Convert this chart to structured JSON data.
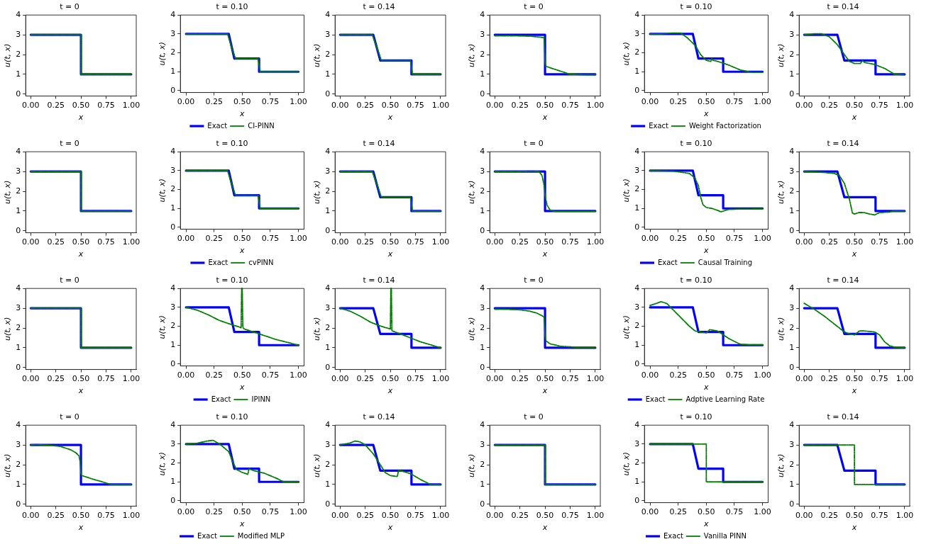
{
  "chart_data": [
    {
      "type": "line",
      "title": "t = 0",
      "xlabel": "x",
      "ylabel": "u(t, x)",
      "xlim": [
        -0.05,
        1.05
      ],
      "xticks": [
        {
          "value": 0,
          "label": "0.00"
        },
        {
          "value": 0.25,
          "label": "0.25"
        },
        {
          "value": 0.5,
          "label": "0.50"
        },
        {
          "value": 0.75,
          "label": "0.75"
        },
        {
          "value": 1,
          "label": "1.00"
        }
      ],
      "ylim": [
        -0.1,
        4
      ],
      "yticks": [
        0,
        1,
        2,
        3,
        4
      ],
      "series": [
        {
          "color": "#0000ff",
          "line_style": "solid",
          "x": [
            0,
            0.5,
            0.5,
            1
          ],
          "values": [
            3,
            3,
            1,
            1
          ]
        },
        {
          "color": "#008000",
          "line_style": "dashed",
          "x": [
            0,
            0.5,
            0.5,
            1
          ],
          "values": [
            3,
            3,
            1,
            1
          ]
        }
      ]
    },
    {
      "type": "line",
      "title": "t = 0.10",
      "xlabel": "x",
      "ylabel": "u(t, x)",
      "xlim": [
        -0.05,
        1.05
      ],
      "xticks": [
        {
          "value": 0,
          "label": "0.00"
        },
        {
          "value": 0.25,
          "label": "0.25"
        },
        {
          "value": 0.5,
          "label": "0.50"
        },
        {
          "value": 0.75,
          "label": "0.75"
        },
        {
          "value": 1,
          "label": "1.00"
        }
      ],
      "ylim": [
        -0.1,
        4
      ],
      "yticks": [
        0,
        1,
        2,
        3,
        4
      ],
      "legend": "bottom",
      "series": [
        {
          "name": "Exact",
          "color": "#0000ff",
          "line_style": "solid",
          "x": [
            0,
            0.38,
            0.43,
            0.65,
            0.65,
            1
          ],
          "values": [
            3,
            3,
            1.7,
            1.7,
            1,
            1
          ]
        },
        {
          "name": "CI-PINN",
          "color": "#008000",
          "line_style": "dashed",
          "x": [
            0,
            0.37,
            0.41,
            0.44,
            0.64,
            0.66,
            1
          ],
          "values": [
            3,
            3,
            2.2,
            1.7,
            1.7,
            1,
            1
          ]
        }
      ]
    },
    {
      "type": "line",
      "title": "t = 0.14",
      "xlabel": "x",
      "ylabel": "u(t, x)",
      "xlim": [
        -0.05,
        1.05
      ],
      "xticks": [
        {
          "value": 0,
          "label": "0.00"
        },
        {
          "value": 0.25,
          "label": "0.25"
        },
        {
          "value": 0.5,
          "label": "0.50"
        },
        {
          "value": 0.75,
          "label": "0.75"
        },
        {
          "value": 1,
          "label": "1.00"
        }
      ],
      "ylim": [
        -0.1,
        4
      ],
      "yticks": [
        0,
        1,
        2,
        3,
        4
      ],
      "series": [
        {
          "color": "#0000ff",
          "line_style": "solid",
          "x": [
            0,
            0.33,
            0.4,
            0.71,
            0.71,
            1
          ],
          "values": [
            3,
            3,
            1.7,
            1.7,
            1,
            1
          ]
        },
        {
          "color": "#008000",
          "line_style": "dashed",
          "x": [
            0,
            0.32,
            0.37,
            0.41,
            0.7,
            0.72,
            1
          ],
          "values": [
            3,
            3,
            2.3,
            1.7,
            1.7,
            1,
            1
          ]
        }
      ]
    },
    {
      "type": "line",
      "title": "t = 0",
      "xlabel": "x",
      "ylabel": "u(t, x)",
      "xlim": [
        -0.05,
        1.05
      ],
      "xticks": [
        {
          "value": 0,
          "label": "0.00"
        },
        {
          "value": 0.25,
          "label": "0.25"
        },
        {
          "value": 0.5,
          "label": "0.50"
        },
        {
          "value": 0.75,
          "label": "0.75"
        },
        {
          "value": 1,
          "label": "1.00"
        }
      ],
      "ylim": [
        -0.1,
        4
      ],
      "yticks": [
        0,
        1,
        2,
        3,
        4
      ],
      "series": [
        {
          "color": "#0000ff",
          "line_style": "solid",
          "x": [
            0,
            0.5,
            0.5,
            1
          ],
          "values": [
            3,
            3,
            1,
            1
          ]
        },
        {
          "color": "#008000",
          "line_style": "dashed",
          "x": [
            0,
            0.2,
            0.35,
            0.45,
            0.49,
            0.5,
            0.51,
            0.6,
            0.75,
            0.9,
            1
          ],
          "values": [
            2.95,
            2.95,
            2.93,
            2.88,
            2.85,
            1.6,
            1.4,
            1.25,
            1.0,
            0.97,
            0.97
          ]
        }
      ]
    },
    {
      "type": "line",
      "title": "t = 0.10",
      "xlabel": "x",
      "ylabel": "u(t, x)",
      "xlim": [
        -0.05,
        1.05
      ],
      "xticks": [
        {
          "value": 0,
          "label": "0.00"
        },
        {
          "value": 0.25,
          "label": "0.25"
        },
        {
          "value": 0.5,
          "label": "0.50"
        },
        {
          "value": 0.75,
          "label": "0.75"
        },
        {
          "value": 1,
          "label": "1.00"
        }
      ],
      "ylim": [
        -0.1,
        4
      ],
      "yticks": [
        0,
        1,
        2,
        3,
        4
      ],
      "legend": "bottom",
      "series": [
        {
          "name": "Exact",
          "color": "#0000ff",
          "line_style": "solid",
          "x": [
            0,
            0.38,
            0.43,
            0.65,
            0.65,
            1
          ],
          "values": [
            3,
            3,
            1.7,
            1.7,
            1,
            1
          ]
        },
        {
          "name": "Weight Factorization",
          "color": "#008000",
          "line_style": "dashed",
          "x": [
            0,
            0.1,
            0.2,
            0.27,
            0.33,
            0.4,
            0.45,
            0.5,
            0.54,
            0.55,
            0.56,
            0.6,
            0.7,
            0.8,
            0.9,
            1
          ],
          "values": [
            3,
            3.0,
            3.05,
            3.05,
            2.8,
            2.4,
            1.9,
            1.6,
            1.55,
            1.7,
            1.6,
            1.55,
            1.35,
            1.1,
            0.97,
            0.97
          ]
        }
      ]
    },
    {
      "type": "line",
      "title": "t = 0.14",
      "xlabel": "x",
      "ylabel": "u(t, x)",
      "xlim": [
        -0.05,
        1.05
      ],
      "xticks": [
        {
          "value": 0,
          "label": "0.00"
        },
        {
          "value": 0.25,
          "label": "0.25"
        },
        {
          "value": 0.5,
          "label": "0.50"
        },
        {
          "value": 0.75,
          "label": "0.75"
        },
        {
          "value": 1,
          "label": "1.00"
        }
      ],
      "ylim": [
        -0.1,
        4
      ],
      "yticks": [
        0,
        1,
        2,
        3,
        4
      ],
      "series": [
        {
          "color": "#0000ff",
          "line_style": "solid",
          "x": [
            0,
            0.33,
            0.4,
            0.71,
            0.71,
            1
          ],
          "values": [
            3,
            3,
            1.7,
            1.7,
            1,
            1
          ]
        },
        {
          "color": "#008000",
          "line_style": "dashed",
          "x": [
            0,
            0.1,
            0.17,
            0.25,
            0.33,
            0.4,
            0.45,
            0.5,
            0.56,
            0.58,
            0.6,
            0.7,
            0.8,
            0.9,
            1
          ],
          "values": [
            3,
            3.05,
            3.05,
            2.9,
            2.5,
            2.0,
            1.65,
            1.55,
            1.55,
            1.7,
            1.6,
            1.5,
            1.3,
            1.0,
            0.97
          ]
        }
      ]
    },
    {
      "type": "line",
      "title": "t = 0",
      "xlabel": "x",
      "ylabel": "u(t, x)",
      "xlim": [
        -0.05,
        1.05
      ],
      "xticks": [
        {
          "value": 0,
          "label": "0.00"
        },
        {
          "value": 0.25,
          "label": "0.25"
        },
        {
          "value": 0.5,
          "label": "0.50"
        },
        {
          "value": 0.75,
          "label": "0.75"
        },
        {
          "value": 1,
          "label": "1.00"
        }
      ],
      "ylim": [
        -0.1,
        4
      ],
      "yticks": [
        0,
        1,
        2,
        3,
        4
      ],
      "series": [
        {
          "color": "#0000ff",
          "line_style": "solid",
          "x": [
            0,
            0.5,
            0.5,
            1
          ],
          "values": [
            3,
            3,
            1,
            1
          ]
        },
        {
          "color": "#008000",
          "line_style": "dashed",
          "x": [
            0,
            0.5,
            0.5,
            1
          ],
          "values": [
            3,
            3,
            1,
            1
          ]
        }
      ]
    },
    {
      "type": "line",
      "title": "t = 0.10",
      "xlabel": "x",
      "ylabel": "u(t, x)",
      "xlim": [
        -0.05,
        1.05
      ],
      "xticks": [
        {
          "value": 0,
          "label": "0.00"
        },
        {
          "value": 0.25,
          "label": "0.25"
        },
        {
          "value": 0.5,
          "label": "0.50"
        },
        {
          "value": 0.75,
          "label": "0.75"
        },
        {
          "value": 1,
          "label": "1.00"
        }
      ],
      "ylim": [
        -0.1,
        4
      ],
      "yticks": [
        0,
        1,
        2,
        3,
        4
      ],
      "legend": "bottom",
      "series": [
        {
          "name": "Exact",
          "color": "#0000ff",
          "line_style": "solid",
          "x": [
            0,
            0.38,
            0.43,
            0.65,
            0.65,
            1
          ],
          "values": [
            3,
            3,
            1.7,
            1.7,
            1,
            1
          ]
        },
        {
          "name": "cvPINN",
          "color": "#008000",
          "line_style": "dashed",
          "x": [
            0,
            0.37,
            0.41,
            0.44,
            0.64,
            0.66,
            1
          ],
          "values": [
            3,
            3,
            2.2,
            1.7,
            1.7,
            1,
            1
          ]
        }
      ]
    },
    {
      "type": "line",
      "title": "t = 0.14",
      "xlabel": "x",
      "ylabel": "u(t, x)",
      "xlim": [
        -0.05,
        1.05
      ],
      "xticks": [
        {
          "value": 0,
          "label": "0.00"
        },
        {
          "value": 0.25,
          "label": "0.25"
        },
        {
          "value": 0.5,
          "label": "0.50"
        },
        {
          "value": 0.75,
          "label": "0.75"
        },
        {
          "value": 1,
          "label": "1.00"
        }
      ],
      "ylim": [
        -0.1,
        4
      ],
      "yticks": [
        0,
        1,
        2,
        3,
        4
      ],
      "series": [
        {
          "color": "#0000ff",
          "line_style": "solid",
          "x": [
            0,
            0.33,
            0.4,
            0.71,
            0.71,
            1
          ],
          "values": [
            3,
            3,
            1.7,
            1.7,
            1,
            1
          ]
        },
        {
          "color": "#008000",
          "line_style": "dashed",
          "x": [
            0,
            0.32,
            0.37,
            0.41,
            0.7,
            0.72,
            1
          ],
          "values": [
            3,
            3,
            2.3,
            1.7,
            1.7,
            1,
            1
          ]
        }
      ]
    },
    {
      "type": "line",
      "title": "t = 0",
      "xlabel": "x",
      "ylabel": "u(t, x)",
      "xlim": [
        -0.05,
        1.05
      ],
      "xticks": [
        {
          "value": 0,
          "label": "0.00"
        },
        {
          "value": 0.25,
          "label": "0.25"
        },
        {
          "value": 0.5,
          "label": "0.50"
        },
        {
          "value": 0.75,
          "label": "0.75"
        },
        {
          "value": 1,
          "label": "1.00"
        }
      ],
      "ylim": [
        -0.1,
        4
      ],
      "yticks": [
        0,
        1,
        2,
        3,
        4
      ],
      "series": [
        {
          "color": "#0000ff",
          "line_style": "solid",
          "x": [
            0,
            0.5,
            0.5,
            1
          ],
          "values": [
            3,
            3,
            1,
            1
          ]
        },
        {
          "color": "#008000",
          "line_style": "dashed",
          "x": [
            0,
            0.2,
            0.38,
            0.44,
            0.47,
            0.49,
            0.5,
            0.52,
            0.55,
            0.6,
            0.8,
            1
          ],
          "values": [
            3.0,
            3.0,
            3.02,
            3.0,
            2.8,
            2.3,
            1.8,
            1.3,
            1.05,
            0.98,
            0.98,
            0.98
          ]
        }
      ]
    },
    {
      "type": "line",
      "title": "t = 0.10",
      "xlabel": "x",
      "ylabel": "u(t, x)",
      "xlim": [
        -0.05,
        1.05
      ],
      "xticks": [
        {
          "value": 0,
          "label": "0.00"
        },
        {
          "value": 0.25,
          "label": "0.25"
        },
        {
          "value": 0.5,
          "label": "0.50"
        },
        {
          "value": 0.75,
          "label": "0.75"
        },
        {
          "value": 1,
          "label": "1.00"
        }
      ],
      "ylim": [
        -0.1,
        4
      ],
      "yticks": [
        0,
        1,
        2,
        3,
        4
      ],
      "legend": "bottom",
      "series": [
        {
          "name": "Exact",
          "color": "#0000ff",
          "line_style": "solid",
          "x": [
            0,
            0.38,
            0.43,
            0.65,
            0.65,
            1
          ],
          "values": [
            3,
            3,
            1.7,
            1.7,
            1,
            1
          ]
        },
        {
          "name": "Causal Training",
          "color": "#008000",
          "line_style": "dashed",
          "x": [
            0,
            0.2,
            0.3,
            0.35,
            0.4,
            0.43,
            0.45,
            0.47,
            0.5,
            0.55,
            0.6,
            0.63,
            0.7,
            0.8,
            0.9,
            1
          ],
          "values": [
            3,
            2.97,
            2.9,
            2.85,
            2.6,
            2.2,
            1.6,
            1.2,
            1.05,
            1.0,
            0.9,
            0.82,
            0.95,
            0.97,
            0.97,
            0.98
          ]
        }
      ]
    },
    {
      "type": "line",
      "title": "t = 0.14",
      "xlabel": "x",
      "ylabel": "u(t, x)",
      "xlim": [
        -0.05,
        1.05
      ],
      "xticks": [
        {
          "value": 0,
          "label": "0.00"
        },
        {
          "value": 0.25,
          "label": "0.25"
        },
        {
          "value": 0.5,
          "label": "0.50"
        },
        {
          "value": 0.75,
          "label": "0.75"
        },
        {
          "value": 1,
          "label": "1.00"
        }
      ],
      "ylim": [
        -0.1,
        4
      ],
      "yticks": [
        0,
        1,
        2,
        3,
        4
      ],
      "series": [
        {
          "color": "#0000ff",
          "line_style": "solid",
          "x": [
            0,
            0.33,
            0.4,
            0.71,
            0.71,
            1
          ],
          "values": [
            3,
            3,
            1.7,
            1.7,
            1,
            1
          ]
        },
        {
          "color": "#008000",
          "line_style": "dashed",
          "x": [
            0,
            0.2,
            0.3,
            0.35,
            0.4,
            0.45,
            0.48,
            0.5,
            0.55,
            0.6,
            0.65,
            0.7,
            0.75,
            0.85,
            0.88,
            1
          ],
          "values": [
            3,
            2.95,
            2.9,
            2.8,
            2.4,
            1.6,
            0.9,
            0.85,
            0.93,
            0.92,
            0.85,
            0.8,
            0.92,
            0.95,
            1.0,
            1.0
          ]
        }
      ]
    },
    {
      "type": "line",
      "title": "t = 0",
      "xlabel": "x",
      "ylabel": "u(t, x)",
      "xlim": [
        -0.05,
        1.05
      ],
      "xticks": [
        {
          "value": 0,
          "label": "0.00"
        },
        {
          "value": 0.25,
          "label": "0.25"
        },
        {
          "value": 0.5,
          "label": "0.50"
        },
        {
          "value": 0.75,
          "label": "0.75"
        },
        {
          "value": 1,
          "label": "1.00"
        }
      ],
      "ylim": [
        -0.1,
        4
      ],
      "yticks": [
        0,
        1,
        2,
        3,
        4
      ],
      "series": [
        {
          "color": "#0000ff",
          "line_style": "solid",
          "x": [
            0,
            0.5,
            0.5,
            1
          ],
          "values": [
            3,
            3,
            1,
            1
          ]
        },
        {
          "color": "#008000",
          "line_style": "dashed",
          "x": [
            0,
            0.5,
            0.5,
            1
          ],
          "values": [
            3,
            3,
            1,
            1
          ]
        }
      ]
    },
    {
      "type": "line",
      "title": "t = 0.10",
      "xlabel": "x",
      "ylabel": "u(t, x)",
      "xlim": [
        -0.05,
        1.05
      ],
      "xticks": [
        {
          "value": 0,
          "label": "0.00"
        },
        {
          "value": 0.25,
          "label": "0.25"
        },
        {
          "value": 0.5,
          "label": "0.50"
        },
        {
          "value": 0.75,
          "label": "0.75"
        },
        {
          "value": 1,
          "label": "1.00"
        }
      ],
      "ylim": [
        -0.1,
        4
      ],
      "yticks": [
        0,
        1,
        2,
        3,
        4
      ],
      "legend": "bottom",
      "series": [
        {
          "name": "Exact",
          "color": "#0000ff",
          "line_style": "solid",
          "x": [
            0,
            0.38,
            0.43,
            0.65,
            0.65,
            1
          ],
          "values": [
            3,
            3,
            1.7,
            1.7,
            1,
            1
          ]
        },
        {
          "name": "IPINN",
          "color": "#008000",
          "line_style": "dashed",
          "x": [
            0,
            0.1,
            0.2,
            0.3,
            0.4,
            0.48,
            0.49,
            0.495,
            0.5,
            0.505,
            0.51,
            0.52,
            0.6,
            0.7,
            0.8,
            0.9,
            1
          ],
          "values": [
            3,
            2.85,
            2.6,
            2.3,
            2.1,
            1.95,
            1.9,
            4,
            4,
            2.0,
            1.9,
            1.85,
            1.7,
            1.5,
            1.3,
            1.15,
            1
          ]
        }
      ]
    },
    {
      "type": "line",
      "title": "t = 0.14",
      "xlabel": "x",
      "ylabel": "u(t, x)",
      "xlim": [
        -0.05,
        1.05
      ],
      "xticks": [
        {
          "value": 0,
          "label": "0.00"
        },
        {
          "value": 0.25,
          "label": "0.25"
        },
        {
          "value": 0.5,
          "label": "0.50"
        },
        {
          "value": 0.75,
          "label": "0.75"
        },
        {
          "value": 1,
          "label": "1.00"
        }
      ],
      "ylim": [
        -0.1,
        4
      ],
      "yticks": [
        0,
        1,
        2,
        3,
        4
      ],
      "series": [
        {
          "color": "#0000ff",
          "line_style": "solid",
          "x": [
            0,
            0.33,
            0.4,
            0.71,
            0.71,
            1
          ],
          "values": [
            3,
            3,
            1.7,
            1.7,
            1,
            1
          ]
        },
        {
          "color": "#008000",
          "line_style": "dashed",
          "x": [
            0,
            0.1,
            0.2,
            0.3,
            0.4,
            0.5,
            0.505,
            0.51,
            0.515,
            0.52,
            0.6,
            0.7,
            0.8,
            0.9,
            1
          ],
          "values": [
            3,
            2.85,
            2.6,
            2.3,
            2.1,
            1.95,
            4,
            4,
            1.9,
            1.85,
            1.7,
            1.5,
            1.3,
            1.15,
            1
          ]
        }
      ]
    },
    {
      "type": "line",
      "title": "t = 0",
      "xlabel": "x",
      "ylabel": "u(t, x)",
      "xlim": [
        -0.05,
        1.05
      ],
      "xticks": [
        {
          "value": 0,
          "label": "0.00"
        },
        {
          "value": 0.25,
          "label": "0.25"
        },
        {
          "value": 0.5,
          "label": "0.50"
        },
        {
          "value": 0.75,
          "label": "0.75"
        },
        {
          "value": 1,
          "label": "1.00"
        }
      ],
      "ylim": [
        -0.1,
        4
      ],
      "yticks": [
        0,
        1,
        2,
        3,
        4
      ],
      "series": [
        {
          "color": "#0000ff",
          "line_style": "solid",
          "x": [
            0,
            0.5,
            0.5,
            1
          ],
          "values": [
            3,
            3,
            1,
            1
          ]
        },
        {
          "color": "#008000",
          "line_style": "dashed",
          "x": [
            0,
            0.1,
            0.25,
            0.35,
            0.42,
            0.47,
            0.49,
            0.5,
            0.51,
            0.55,
            0.65,
            0.8,
            1
          ],
          "values": [
            2.95,
            2.95,
            2.92,
            2.85,
            2.75,
            2.62,
            2.55,
            1.6,
            1.35,
            1.2,
            1.08,
            1.03,
            1.03
          ]
        }
      ]
    },
    {
      "type": "line",
      "title": "t = 0.10",
      "xlabel": "x",
      "ylabel": "u(t, x)",
      "xlim": [
        -0.05,
        1.05
      ],
      "xticks": [
        {
          "value": 0,
          "label": "0.00"
        },
        {
          "value": 0.25,
          "label": "0.25"
        },
        {
          "value": 0.5,
          "label": "0.50"
        },
        {
          "value": 0.75,
          "label": "0.75"
        },
        {
          "value": 1,
          "label": "1.00"
        }
      ],
      "ylim": [
        -0.1,
        4
      ],
      "yticks": [
        0,
        1,
        2,
        3,
        4
      ],
      "legend": "bottom",
      "series": [
        {
          "name": "Exact",
          "color": "#0000ff",
          "line_style": "solid",
          "x": [
            0,
            0.38,
            0.43,
            0.65,
            0.65,
            1
          ],
          "values": [
            3,
            3,
            1.7,
            1.7,
            1,
            1
          ]
        },
        {
          "name": "Adptive Learning Rate",
          "color": "#008000",
          "line_style": "dashed",
          "x": [
            0,
            0.05,
            0.1,
            0.15,
            0.2,
            0.3,
            0.35,
            0.4,
            0.45,
            0.5,
            0.53,
            0.6,
            0.65,
            0.7,
            0.8,
            0.9,
            1
          ],
          "values": [
            3.1,
            3.2,
            3.3,
            3.2,
            2.9,
            2.3,
            2.0,
            1.75,
            1.7,
            1.65,
            1.82,
            1.75,
            1.55,
            1.35,
            1.05,
            1.02,
            1.02
          ]
        }
      ]
    },
    {
      "type": "line",
      "title": "t = 0.14",
      "xlabel": "x",
      "ylabel": "u(t, x)",
      "xlim": [
        -0.05,
        1.05
      ],
      "xticks": [
        {
          "value": 0,
          "label": "0.00"
        },
        {
          "value": 0.25,
          "label": "0.25"
        },
        {
          "value": 0.5,
          "label": "0.50"
        },
        {
          "value": 0.75,
          "label": "0.75"
        },
        {
          "value": 1,
          "label": "1.00"
        }
      ],
      "ylim": [
        -0.1,
        4
      ],
      "yticks": [
        0,
        1,
        2,
        3,
        4
      ],
      "series": [
        {
          "color": "#0000ff",
          "line_style": "solid",
          "x": [
            0,
            0.33,
            0.4,
            0.71,
            0.71,
            1
          ],
          "values": [
            3,
            3,
            1.7,
            1.7,
            1,
            1
          ]
        },
        {
          "color": "#008000",
          "line_style": "dashed",
          "x": [
            0,
            0.1,
            0.2,
            0.3,
            0.4,
            0.45,
            0.5,
            0.55,
            0.6,
            0.7,
            0.75,
            0.8,
            0.85,
            0.9,
            1
          ],
          "values": [
            3.25,
            2.95,
            2.6,
            2.2,
            1.8,
            1.7,
            1.65,
            1.85,
            1.85,
            1.8,
            1.65,
            1.3,
            1.1,
            1.03,
            1.0
          ]
        }
      ]
    },
    {
      "type": "line",
      "title": "t = 0",
      "xlabel": "x",
      "ylabel": "u(t, x)",
      "xlim": [
        -0.05,
        1.05
      ],
      "xticks": [
        {
          "value": 0,
          "label": "0.00"
        },
        {
          "value": 0.25,
          "label": "0.25"
        },
        {
          "value": 0.5,
          "label": "0.50"
        },
        {
          "value": 0.75,
          "label": "0.75"
        },
        {
          "value": 1,
          "label": "1.00"
        }
      ],
      "ylim": [
        -0.1,
        4
      ],
      "yticks": [
        0,
        1,
        2,
        3,
        4
      ],
      "series": [
        {
          "color": "#0000ff",
          "line_style": "solid",
          "x": [
            0,
            0.5,
            0.5,
            1
          ],
          "values": [
            3,
            3,
            1,
            1
          ]
        },
        {
          "color": "#008000",
          "line_style": "dashed",
          "x": [
            0,
            0.05,
            0.2,
            0.3,
            0.4,
            0.45,
            0.48,
            0.49,
            0.5,
            0.51,
            0.6,
            0.7,
            0.8,
            1
          ],
          "values": [
            3,
            3.02,
            2.98,
            2.92,
            2.75,
            2.6,
            2.45,
            2.2,
            1.55,
            1.45,
            1.3,
            1.15,
            1.0,
            1.0
          ]
        }
      ]
    },
    {
      "type": "line",
      "title": "t = 0.10",
      "xlabel": "x",
      "ylabel": "u(t, x)",
      "xlim": [
        -0.05,
        1.05
      ],
      "xticks": [
        {
          "value": 0,
          "label": "0.00"
        },
        {
          "value": 0.25,
          "label": "0.25"
        },
        {
          "value": 0.5,
          "label": "0.50"
        },
        {
          "value": 0.75,
          "label": "0.75"
        },
        {
          "value": 1,
          "label": "1.00"
        }
      ],
      "ylim": [
        -0.1,
        4
      ],
      "yticks": [
        0,
        1,
        2,
        3,
        4
      ],
      "legend": "bottom",
      "series": [
        {
          "name": "Exact",
          "color": "#0000ff",
          "line_style": "solid",
          "x": [
            0,
            0.38,
            0.43,
            0.65,
            0.65,
            1
          ],
          "values": [
            3,
            3,
            1.7,
            1.7,
            1,
            1
          ]
        },
        {
          "name": "Modified MLP",
          "color": "#008000",
          "line_style": "dashed",
          "x": [
            0,
            0.1,
            0.18,
            0.24,
            0.3,
            0.38,
            0.42,
            0.45,
            0.5,
            0.55,
            0.56,
            0.6,
            0.7,
            0.8,
            0.87,
            1
          ],
          "values": [
            3,
            3.05,
            3.15,
            3.2,
            3.0,
            2.6,
            2.0,
            1.65,
            1.5,
            1.4,
            1.7,
            1.6,
            1.45,
            1.2,
            1.0,
            1.0
          ]
        }
      ]
    },
    {
      "type": "line",
      "title": "t = 0.14",
      "xlabel": "x",
      "ylabel": "u(t, x)",
      "xlim": [
        -0.05,
        1.05
      ],
      "xticks": [
        {
          "value": 0,
          "label": "0.00"
        },
        {
          "value": 0.25,
          "label": "0.25"
        },
        {
          "value": 0.5,
          "label": "0.50"
        },
        {
          "value": 0.75,
          "label": "0.75"
        },
        {
          "value": 1,
          "label": "1.00"
        }
      ],
      "ylim": [
        -0.1,
        4
      ],
      "yticks": [
        0,
        1,
        2,
        3,
        4
      ],
      "series": [
        {
          "color": "#0000ff",
          "line_style": "solid",
          "x": [
            0,
            0.33,
            0.4,
            0.71,
            0.71,
            1
          ],
          "values": [
            3,
            3,
            1.7,
            1.7,
            1,
            1
          ]
        },
        {
          "color": "#008000",
          "line_style": "dashed",
          "x": [
            0,
            0.1,
            0.15,
            0.2,
            0.25,
            0.33,
            0.4,
            0.45,
            0.5,
            0.57,
            0.58,
            0.6,
            0.7,
            0.8,
            0.9,
            1
          ],
          "values": [
            3,
            3.1,
            3.2,
            3.15,
            3.0,
            2.55,
            2.0,
            1.6,
            1.45,
            1.4,
            1.7,
            1.7,
            1.55,
            1.25,
            1.0,
            1.0
          ]
        }
      ]
    },
    {
      "type": "line",
      "title": "t = 0",
      "xlabel": "x",
      "ylabel": "u(t, x)",
      "xlim": [
        -0.05,
        1.05
      ],
      "xticks": [
        {
          "value": 0,
          "label": "0.00"
        },
        {
          "value": 0.25,
          "label": "0.25"
        },
        {
          "value": 0.5,
          "label": "0.50"
        },
        {
          "value": 0.75,
          "label": "0.75"
        },
        {
          "value": 1,
          "label": "1.00"
        }
      ],
      "ylim": [
        -0.1,
        4
      ],
      "yticks": [
        0,
        1,
        2,
        3,
        4
      ],
      "series": [
        {
          "color": "#0000ff",
          "line_style": "solid",
          "x": [
            0,
            0.5,
            0.5,
            1
          ],
          "values": [
            3,
            3,
            1,
            1
          ]
        },
        {
          "color": "#008000",
          "line_style": "dashed",
          "x": [
            0,
            0.5,
            0.5,
            1
          ],
          "values": [
            3,
            3,
            1,
            1
          ]
        }
      ]
    },
    {
      "type": "line",
      "title": "t = 0.10",
      "xlabel": "x",
      "ylabel": "u(t, x)",
      "xlim": [
        -0.05,
        1.05
      ],
      "xticks": [
        {
          "value": 0,
          "label": "0.00"
        },
        {
          "value": 0.25,
          "label": "0.25"
        },
        {
          "value": 0.5,
          "label": "0.50"
        },
        {
          "value": 0.75,
          "label": "0.75"
        },
        {
          "value": 1,
          "label": "1.00"
        }
      ],
      "ylim": [
        -0.1,
        4
      ],
      "yticks": [
        0,
        1,
        2,
        3,
        4
      ],
      "legend": "bottom",
      "series": [
        {
          "name": "Exact",
          "color": "#0000ff",
          "line_style": "solid",
          "x": [
            0,
            0.38,
            0.43,
            0.65,
            0.65,
            1
          ],
          "values": [
            3,
            3,
            1.7,
            1.7,
            1,
            1
          ]
        },
        {
          "name": "Vanilla PINN",
          "color": "#008000",
          "line_style": "dashed",
          "x": [
            0,
            0.5,
            0.5,
            1
          ],
          "values": [
            3,
            3,
            1,
            1
          ]
        }
      ]
    },
    {
      "type": "line",
      "title": "t = 0.14",
      "xlabel": "x",
      "ylabel": "u(t, x)",
      "xlim": [
        -0.05,
        1.05
      ],
      "xticks": [
        {
          "value": 0,
          "label": "0.00"
        },
        {
          "value": 0.25,
          "label": "0.25"
        },
        {
          "value": 0.5,
          "label": "0.50"
        },
        {
          "value": 0.75,
          "label": "0.75"
        },
        {
          "value": 1,
          "label": "1.00"
        }
      ],
      "ylim": [
        -0.1,
        4
      ],
      "yticks": [
        0,
        1,
        2,
        3,
        4
      ],
      "series": [
        {
          "color": "#0000ff",
          "line_style": "solid",
          "x": [
            0,
            0.33,
            0.4,
            0.71,
            0.71,
            1
          ],
          "values": [
            3,
            3,
            1.7,
            1.7,
            1,
            1
          ]
        },
        {
          "color": "#008000",
          "line_style": "dashed",
          "x": [
            0,
            0.5,
            0.5,
            1
          ],
          "values": [
            3,
            3,
            1,
            1
          ]
        }
      ]
    }
  ]
}
